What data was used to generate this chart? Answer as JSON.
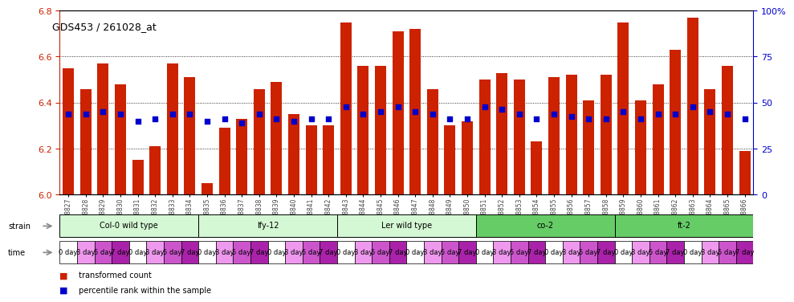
{
  "title": "GDS453 / 261028_at",
  "gsm_labels": [
    "GSM8827",
    "GSM8828",
    "GSM8829",
    "GSM8830",
    "GSM8831",
    "GSM8832",
    "GSM8833",
    "GSM8834",
    "GSM8835",
    "GSM8836",
    "GSM8837",
    "GSM8838",
    "GSM8839",
    "GSM8840",
    "GSM8841",
    "GSM8842",
    "GSM8843",
    "GSM8844",
    "GSM8845",
    "GSM8846",
    "GSM8847",
    "GSM8848",
    "GSM8849",
    "GSM8850",
    "GSM8851",
    "GSM8852",
    "GSM8853",
    "GSM8854",
    "GSM8855",
    "GSM8856",
    "GSM8857",
    "GSM8858",
    "GSM8859",
    "GSM8860",
    "GSM8861",
    "GSM8862",
    "GSM8863",
    "GSM8864",
    "GSM8865",
    "GSM8866"
  ],
  "bar_values": [
    6.55,
    6.46,
    6.57,
    6.48,
    6.15,
    6.21,
    6.57,
    6.51,
    6.05,
    6.29,
    6.33,
    6.46,
    6.49,
    6.35,
    6.3,
    6.3,
    6.75,
    6.56,
    6.56,
    6.71,
    6.72,
    6.46,
    6.3,
    6.32,
    6.5,
    6.53,
    6.5,
    6.23,
    6.51,
    6.52,
    6.41,
    6.52,
    6.75,
    6.41,
    6.48,
    6.63,
    6.77,
    6.46,
    6.56,
    6.19
  ],
  "percentile_values": [
    6.35,
    6.35,
    6.36,
    6.35,
    6.32,
    6.33,
    6.35,
    6.35,
    6.32,
    6.33,
    6.31,
    6.35,
    6.33,
    6.32,
    6.33,
    6.33,
    6.38,
    6.35,
    6.36,
    6.38,
    6.36,
    6.35,
    6.33,
    6.33,
    6.38,
    6.37,
    6.35,
    6.33,
    6.35,
    6.34,
    6.33,
    6.33,
    6.36,
    6.33,
    6.35,
    6.35,
    6.38,
    6.36,
    6.35,
    6.33
  ],
  "ylim_left": [
    6.0,
    6.8
  ],
  "ylim_right": [
    0,
    100
  ],
  "yticks_left": [
    6.0,
    6.2,
    6.4,
    6.6,
    6.8
  ],
  "yticks_right": [
    0,
    25,
    50,
    75,
    100
  ],
  "ytick_right_labels": [
    "0",
    "25",
    "50",
    "75",
    "100%"
  ],
  "bar_color": "#cc2200",
  "dot_color": "#0000cc",
  "bg_color": "#ffffff",
  "grid_lines": [
    6.2,
    6.4,
    6.6
  ],
  "strains": [
    {
      "label": "Col-0 wild type",
      "start": 0,
      "end": 8,
      "color": "#d4f7d4"
    },
    {
      "label": "lfy-12",
      "start": 8,
      "end": 16,
      "color": "#d4f7d4"
    },
    {
      "label": "Ler wild type",
      "start": 16,
      "end": 24,
      "color": "#d4f7d4"
    },
    {
      "label": "co-2",
      "start": 24,
      "end": 32,
      "color": "#66cc66"
    },
    {
      "label": "ft-2",
      "start": 32,
      "end": 40,
      "color": "#66cc66"
    }
  ],
  "time_labels": [
    "0 day",
    "3 day",
    "5 day",
    "7 day"
  ],
  "time_colors": [
    "#ffffff",
    "#ee99ee",
    "#cc55cc",
    "#aa22aa"
  ],
  "legend_bar_color": "#cc2200",
  "legend_dot_color": "#0000cc",
  "label_color_strain": "#888888",
  "label_color_time": "#888888",
  "arrow_color": "#888888"
}
